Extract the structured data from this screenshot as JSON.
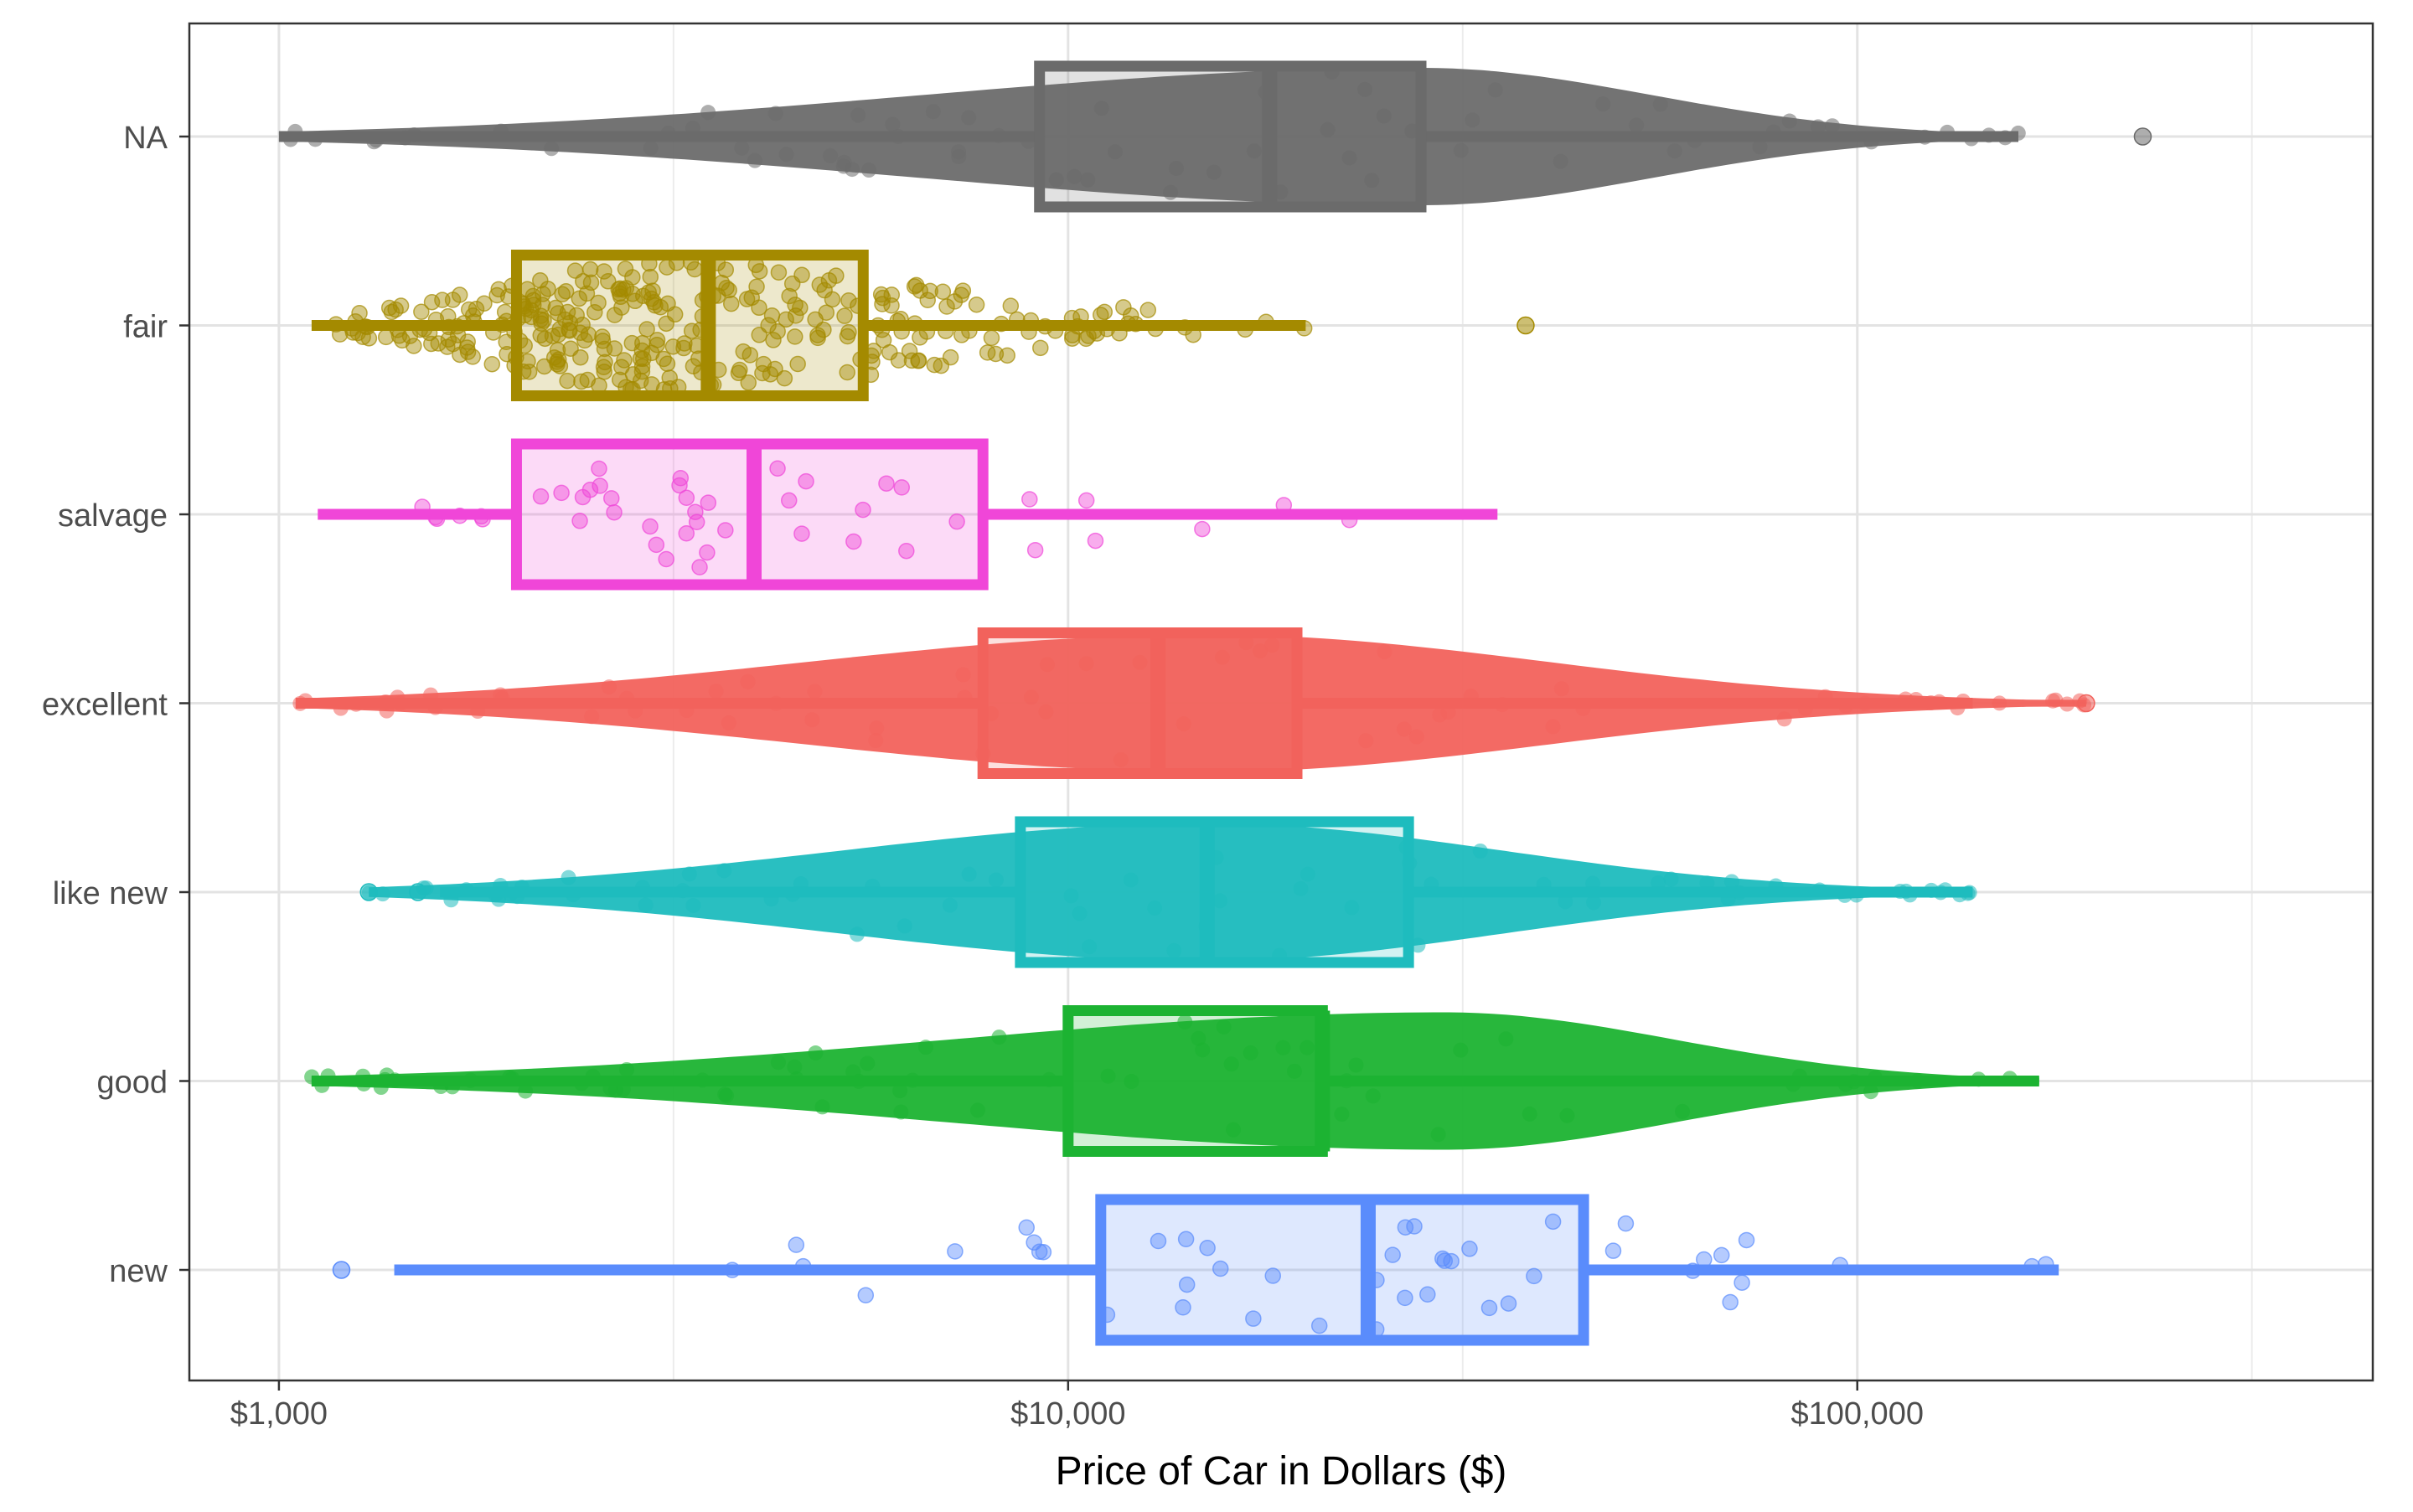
{
  "chart_data": {
    "type": "boxplot",
    "orientation": "horizontal",
    "overlay": "beeswarm points with boxplot",
    "xlabel": "Price of Car in Dollars ($)",
    "ylabel": "",
    "x_scale": "log10",
    "xlim": [
      770,
      450000
    ],
    "x_ticks": [
      1000,
      10000,
      100000
    ],
    "x_tick_labels": [
      "$1,000",
      "$10,000",
      "$100,000"
    ],
    "x_minor_ticks": [
      3162,
      31623,
      316228
    ],
    "grid": true,
    "legend": "none",
    "categories": [
      "NA",
      "fair",
      "salvage",
      "excellent",
      "like new",
      "good",
      "new"
    ],
    "series": [
      {
        "category": "NA",
        "color": "#6b6b6b",
        "min": 1000,
        "q1": 9200,
        "median": 18000,
        "q3": 28000,
        "max": 160000,
        "outliers": [
          230000
        ],
        "point_range": [
          1000,
          160000
        ],
        "peak": 28000,
        "density": "dense"
      },
      {
        "category": "fair",
        "color": "#a48a00",
        "min": 1100,
        "q1": 2000,
        "median": 3500,
        "q3": 5500,
        "max": 20000,
        "outliers": [
          38000
        ],
        "point_range": [
          1150,
          20000
        ],
        "peak": 3000,
        "density": "medium"
      },
      {
        "category": "salvage",
        "color": "#f046d8",
        "min": 1120,
        "q1": 2000,
        "median": 4000,
        "q3": 7800,
        "max": 35000,
        "outliers": [],
        "point_range": [
          1500,
          27000
        ],
        "peak": 3500,
        "density": "sparse"
      },
      {
        "category": "excellent",
        "color": "#f2625c",
        "min": 1050,
        "q1": 7800,
        "median": 13000,
        "q3": 19500,
        "max": 140000,
        "outliers": [
          195000
        ],
        "point_range": [
          1050,
          195000
        ],
        "peak": 15000,
        "density": "dense"
      },
      {
        "category": "like new",
        "color": "#1ebcbe",
        "min": 1600,
        "q1": 8700,
        "median": 15000,
        "q3": 27000,
        "max": 140000,
        "outliers": [
          1300,
          1500
        ],
        "point_range": [
          1300,
          140000
        ],
        "peak": 15000,
        "density": "dense"
      },
      {
        "category": "good",
        "color": "#1cb332",
        "min": 1100,
        "q1": 10000,
        "median": 21000,
        "q3": 21000,
        "max": 170000,
        "outliers": [],
        "point_range": [
          1100,
          170000
        ],
        "peak": 30000,
        "density": "dense"
      },
      {
        "category": "new",
        "color": "#5a8cfc",
        "min": 1400,
        "q1": 11000,
        "median": 24000,
        "q3": 45000,
        "max": 180000,
        "outliers": [
          1200
        ],
        "point_range": [
          1200,
          180000
        ],
        "peak": 25000,
        "density": "sparse"
      }
    ]
  }
}
